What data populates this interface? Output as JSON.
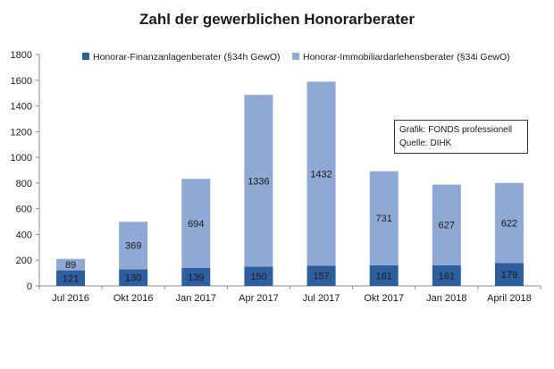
{
  "chart_data": {
    "type": "bar",
    "stacked": true,
    "title": "Zahl der gewerblichen Honorarberater",
    "categories": [
      "Jul 2016",
      "Okt 2016",
      "Jan 2017",
      "Apr 2017",
      "Jul 2017",
      "Okt 2017",
      "Jan 2018",
      "April 2018"
    ],
    "series": [
      {
        "name": "Honorar-Finanzanlagenberater (§34h GewO)",
        "color": "#2e5e9e",
        "values": [
          121,
          130,
          139,
          150,
          157,
          161,
          161,
          179
        ]
      },
      {
        "name": "Honorar-Immobiliardarlehensberater (§34i GewO)",
        "color": "#90a9d4",
        "values": [
          89,
          369,
          694,
          1336,
          1432,
          731,
          627,
          622
        ]
      }
    ],
    "ylim": [
      0,
      1800
    ],
    "yticks": [
      "0",
      "200",
      "400",
      "600",
      "800",
      "1000",
      "1200",
      "1400",
      "1600",
      "1800"
    ],
    "grid": false,
    "legend": "top",
    "annotation": [
      "Grafik: FONDS professionell",
      "Quelle: DIHK"
    ]
  }
}
